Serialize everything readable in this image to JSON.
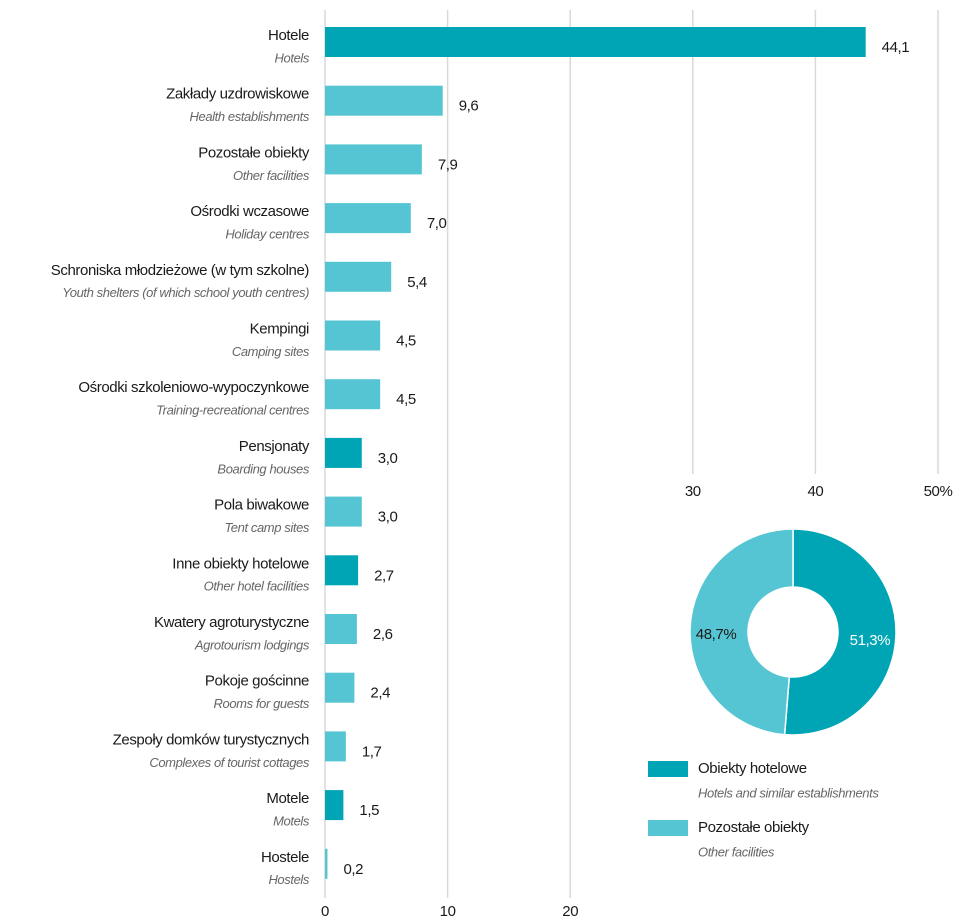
{
  "chart_data": [
    {
      "type": "bar",
      "categories": [
        "Hotele",
        "Zakłady uzdrowiskowe",
        "Pozostałe obiekty",
        "Ośrodki wczasowe",
        "Schroniska młodzieżowe (w tym szkolne)",
        "Kempingi",
        "Ośrodki szkoleniowo-wypoczynkowe",
        "Pensjonaty",
        "Pola biwakowe",
        "Inne obiekty hotelowe",
        "Kwatery agroturystyczne",
        "Pokoje gościnne",
        "Zespoły domków turystycznych",
        "Motele",
        "Hostele"
      ],
      "categories_en": [
        "Hotels",
        "Health establishments",
        "Other facilities",
        "Holiday centres",
        "Youth shelters (of which school youth centres)",
        "Camping sites",
        "Training-recreational centres",
        "Boarding houses",
        "Tent camp sites",
        "Other hotel facilities",
        "Agrotourism lodgings",
        "Rooms for guests",
        "Complexes of tourist cottages",
        "Motels",
        "Hostels"
      ],
      "values": [
        44.1,
        9.6,
        7.9,
        7.0,
        5.4,
        4.5,
        4.5,
        3.0,
        3.0,
        2.7,
        2.6,
        2.4,
        1.7,
        1.5,
        0.2
      ],
      "value_labels": [
        "44,1",
        "9,6",
        "7,9",
        "7,0",
        "5,4",
        "4,5",
        "4,5",
        "3,0",
        "3,0",
        "2,7",
        "2,6",
        "2,4",
        "1,7",
        "1,5",
        "0,2"
      ],
      "colors": [
        "#00a5b5",
        "#56c5d3",
        "#56c5d3",
        "#56c5d3",
        "#56c5d3",
        "#56c5d3",
        "#56c5d3",
        "#00a5b5",
        "#56c5d3",
        "#00a5b5",
        "#56c5d3",
        "#56c5d3",
        "#56c5d3",
        "#00a5b5",
        "#56c5d3"
      ],
      "xlim": [
        0,
        50
      ],
      "xticks": [
        0,
        10,
        20,
        30,
        40,
        {
          "value": 50,
          "label": "50%"
        }
      ],
      "grid": true
    },
    {
      "type": "pie",
      "categories": [
        "Obiekty hotelowe",
        "Pozostałe obiekty"
      ],
      "categories_en": [
        "Hotels and similar establishments",
        "Other facilities"
      ],
      "values": [
        51.3,
        48.7
      ],
      "value_labels": [
        "51,3%",
        "48,7%"
      ],
      "colors": [
        "#00a5b5",
        "#56c5d3"
      ]
    }
  ]
}
